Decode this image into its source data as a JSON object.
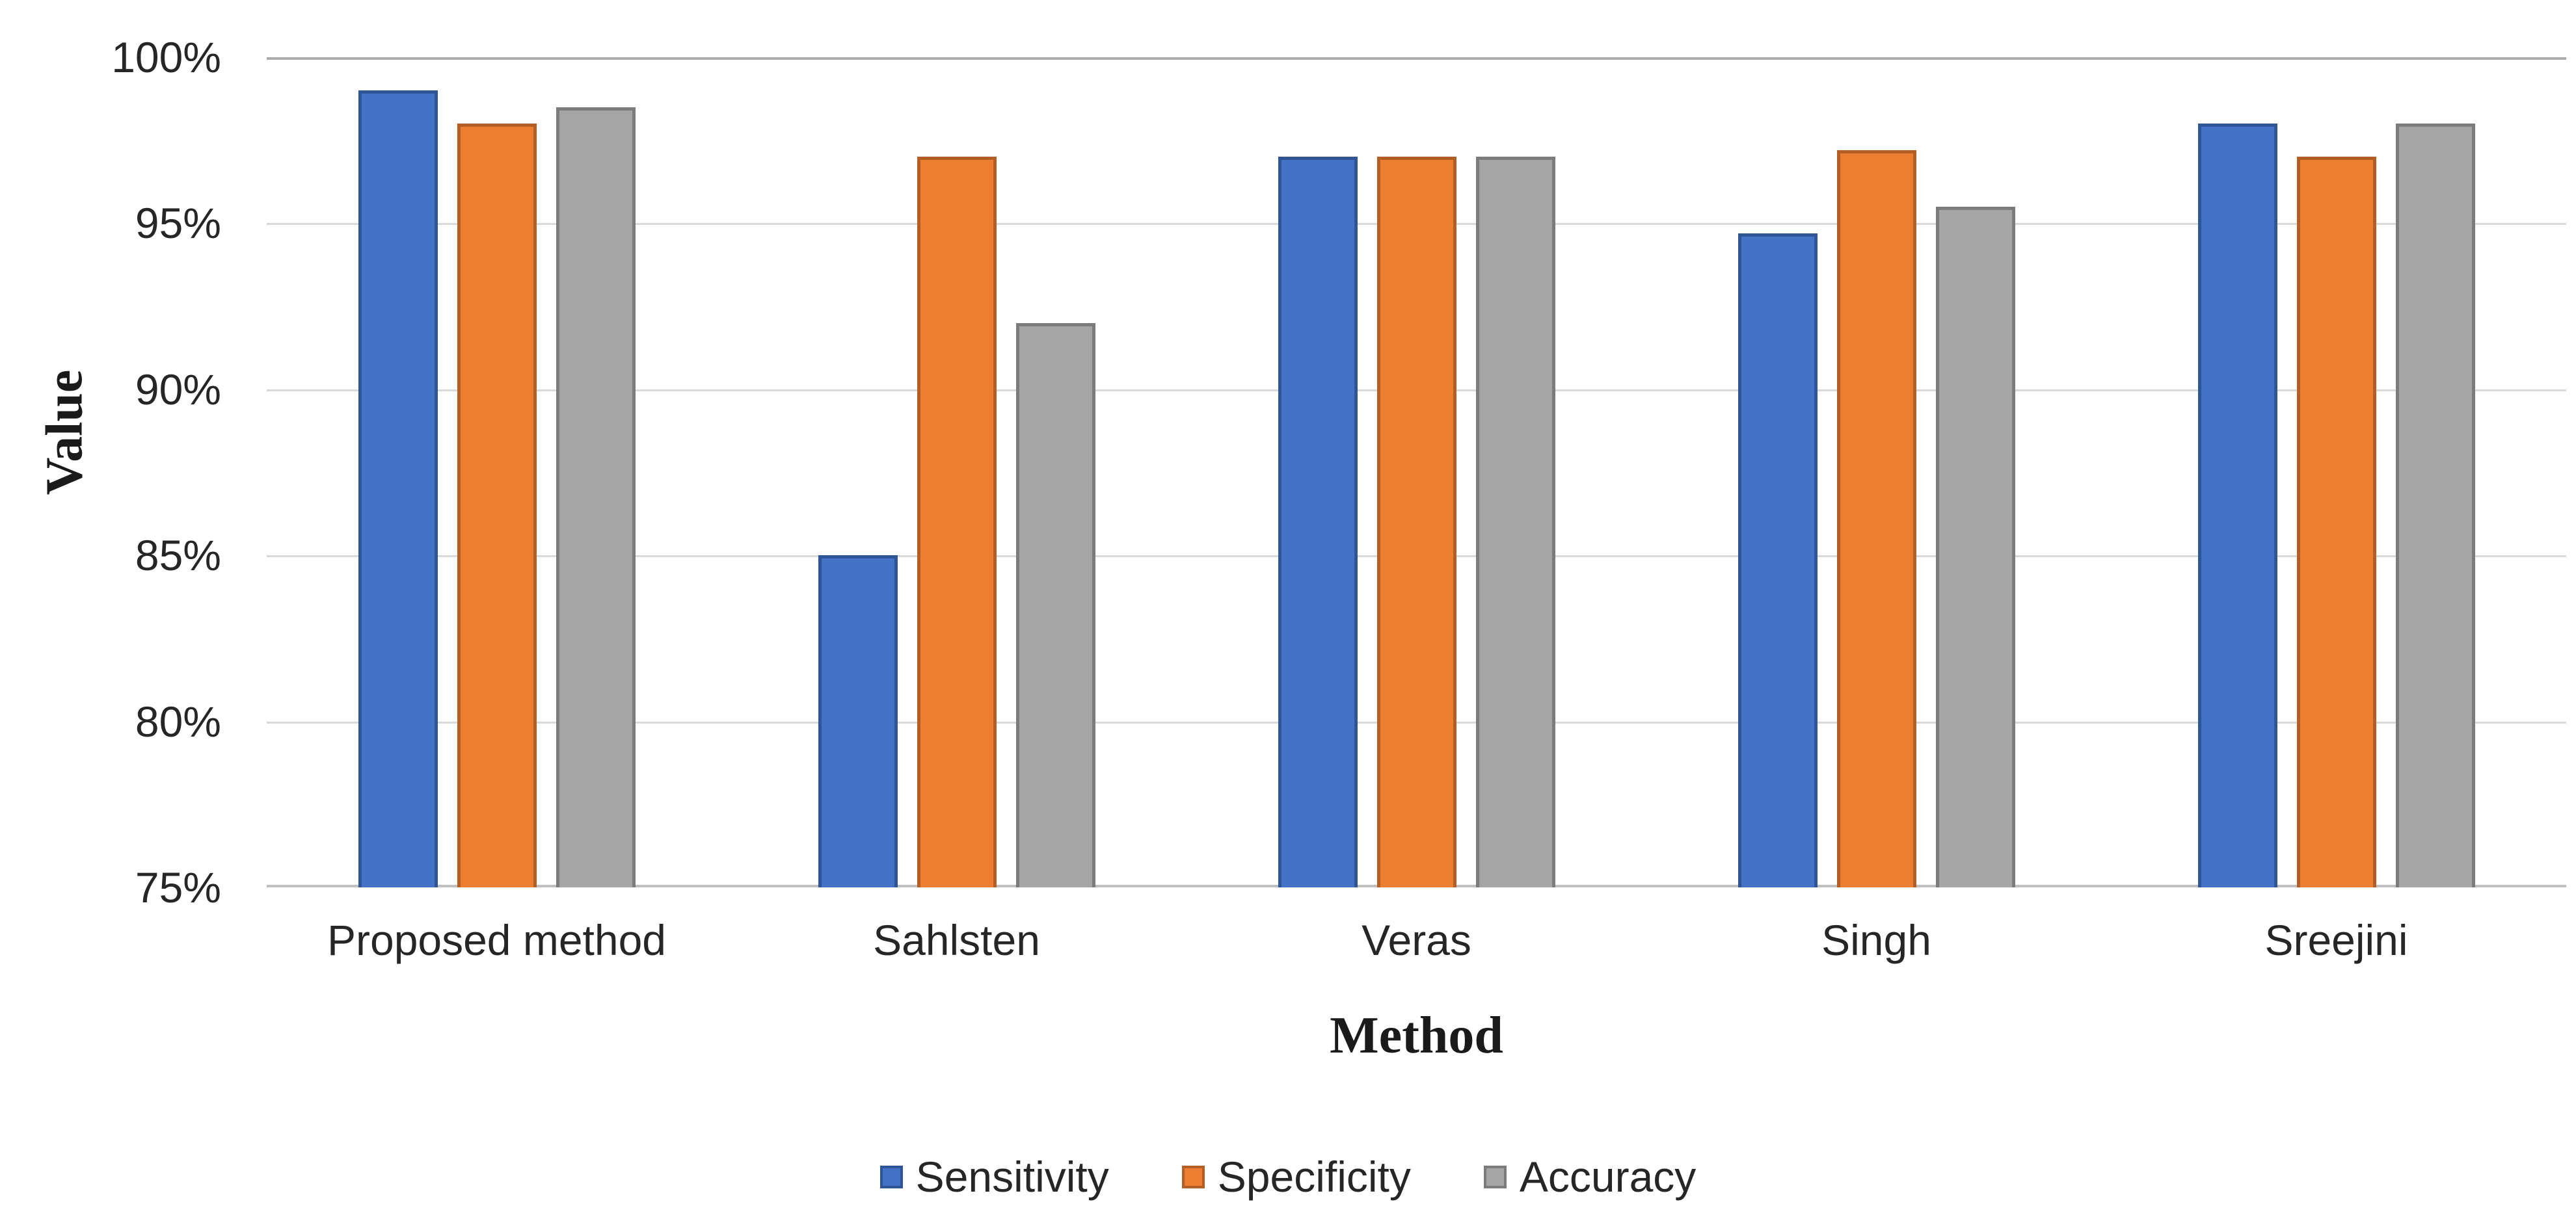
{
  "chart_data": {
    "type": "bar",
    "title": "",
    "categories": [
      "Proposed method",
      "Sahlsten",
      "Veras",
      "Singh",
      "Sreejini"
    ],
    "series": [
      {
        "name": "Sensitivity",
        "color": "#4472c4",
        "border_color": "#2f5597",
        "values": [
          99,
          85,
          97,
          94.7,
          98
        ]
      },
      {
        "name": "Specificity",
        "color": "#ed7d31",
        "border_color": "#b25e25",
        "values": [
          98,
          97,
          97,
          97.2,
          97
        ]
      },
      {
        "name": "Accuracy",
        "color": "#a5a5a5",
        "border_color": "#7c7c7c",
        "values": [
          98.5,
          92,
          97,
          95.5,
          98
        ]
      }
    ],
    "xlabel": "Method",
    "ylabel": "Value",
    "ylim": [
      75,
      100
    ],
    "y_ticks": [
      {
        "value": 100,
        "label": "100%"
      },
      {
        "value": 95,
        "label": "95%"
      },
      {
        "value": 90,
        "label": "90%"
      },
      {
        "value": 85,
        "label": "85%"
      },
      {
        "value": 80,
        "label": "80%"
      },
      {
        "value": 75,
        "label": "75%"
      }
    ],
    "grid": true,
    "legend_position": "bottom",
    "value_unit": "%"
  },
  "colors": {
    "gridline": "#d9d9d9",
    "gridline_top": "#acacac",
    "axis_line": "#bfbfbf",
    "text": "#262626"
  }
}
